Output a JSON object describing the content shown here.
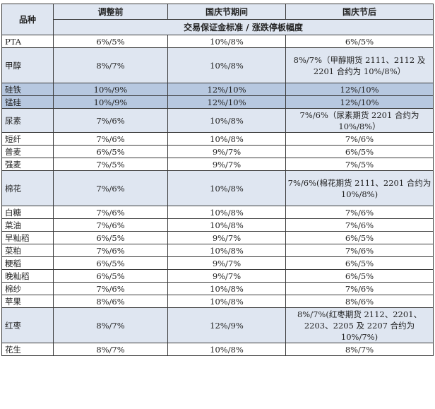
{
  "headers": {
    "variety": "品种",
    "before": "调整前",
    "during": "国庆节期间",
    "after": "国庆节后",
    "subheader": "交易保证金标准 / 涨跌停板幅度"
  },
  "rows": [
    {
      "name": "PTA",
      "before": "6%/5%",
      "during": "10%/8%",
      "after": "6%/5%"
    },
    {
      "name": "甲醇",
      "before": "8%/7%",
      "during": "10%/8%",
      "after": "8%/7%（甲醇期货 2111、2112 及 2201 合约为 10%/8%）"
    },
    {
      "name": "硅铁",
      "before": "10%/9%",
      "during": "12%/10%",
      "after": "12%/10%"
    },
    {
      "name": "锰硅",
      "before": "10%/9%",
      "during": "12%/10%",
      "after": "12%/10%"
    },
    {
      "name": "尿素",
      "before": "7%/6%",
      "during": "10%/8%",
      "after": "7%/6%（尿素期货 2201 合约为 10%/8%）"
    },
    {
      "name": "短纤",
      "before": "7%/6%",
      "during": "10%/8%",
      "after": "7%/6%"
    },
    {
      "name": "普麦",
      "before": "6%/5%",
      "during": "9%/7%",
      "after": "6%/5%"
    },
    {
      "name": "强麦",
      "before": "7%/5%",
      "during": "9%/7%",
      "after": "7%/5%"
    },
    {
      "name": "棉花",
      "before": "7%/6%",
      "during": "10%/8%",
      "after": "7%/6%(棉花期货 2111、2201 合约为 10%/8%)"
    },
    {
      "name": "白糖",
      "before": "7%/6%",
      "during": "10%/8%",
      "after": "7%/6%"
    },
    {
      "name": "菜油",
      "before": "7%/6%",
      "during": "10%/8%",
      "after": "7%/6%"
    },
    {
      "name": "早籼稻",
      "before": "6%/5%",
      "during": "9%/7%",
      "after": "6%/5%"
    },
    {
      "name": "菜粕",
      "before": "7%/6%",
      "during": "10%/8%",
      "after": "7%/6%"
    },
    {
      "name": "粳稻",
      "before": "6%/5%",
      "during": "9%/7%",
      "after": "6%/5%"
    },
    {
      "name": "晚籼稻",
      "before": "6%/5%",
      "during": "9%/7%",
      "after": "6%/5%"
    },
    {
      "name": "棉纱",
      "before": "7%/6%",
      "during": "10%/8%",
      "after": "7%/6%"
    },
    {
      "name": "苹果",
      "before": "8%/6%",
      "during": "10%/8%",
      "after": "8%/6%"
    },
    {
      "name": "红枣",
      "before": "8%/7%",
      "during": "12%/9%",
      "after": "8%/7%(红枣期货 2112、2201、2203、2205 及 2207 合约为 10%/7%)"
    },
    {
      "name": "花生",
      "before": "8%/7%",
      "during": "10%/8%",
      "after": "8%/7%"
    }
  ],
  "colors": {
    "header_bg": "#dfe6f1",
    "row_blue": "#dfe6f1",
    "row_dark": "#b7c8e0",
    "row_white": "#ffffff",
    "border": "#3a3a3a"
  }
}
